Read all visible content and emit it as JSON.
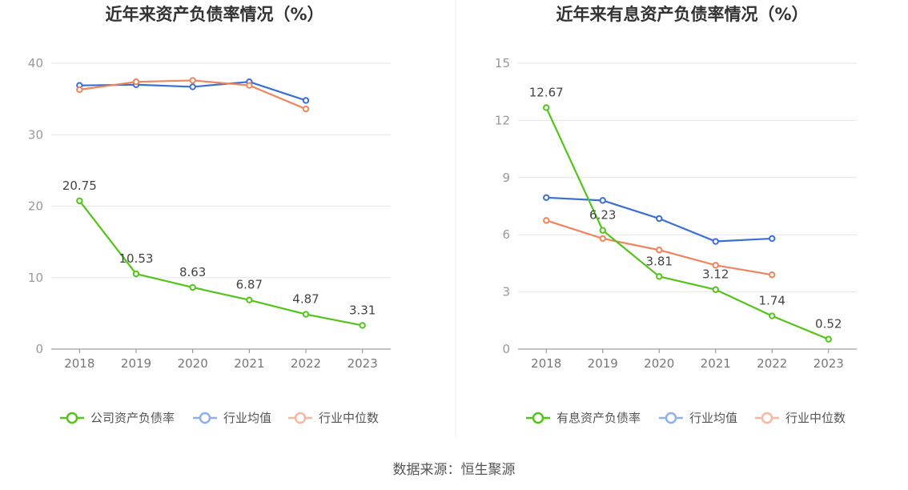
{
  "source": "数据来源：恒生聚源",
  "chart_data": [
    {
      "type": "line",
      "title": "近年来资产负债率情况（%）",
      "categories": [
        "2018",
        "2019",
        "2020",
        "2021",
        "2022",
        "2023"
      ],
      "ylim": [
        0,
        40
      ],
      "yticks": [
        0,
        10,
        20,
        30,
        40
      ],
      "grid": true,
      "legend_position": "bottom",
      "series": [
        {
          "name": "公司资产负债率",
          "color": "#52c41a",
          "values": [
            20.75,
            10.53,
            8.63,
            6.87,
            4.87,
            3.31
          ],
          "labels": [
            "20.75",
            "10.53",
            "8.63",
            "6.87",
            "4.87",
            "3.31"
          ]
        },
        {
          "name": "行业均值",
          "color": "#3a6fd8",
          "legend_color": "#8fb0ec",
          "values": [
            36.9,
            37.0,
            36.7,
            37.4,
            34.8,
            null
          ]
        },
        {
          "name": "行业中位数",
          "color": "#f0845c",
          "legend_color": "#f7b7a0",
          "values": [
            36.3,
            37.4,
            37.6,
            36.9,
            33.6,
            null
          ]
        }
      ]
    },
    {
      "type": "line",
      "title": "近年来有息资产负债率情况（%）",
      "categories": [
        "2018",
        "2019",
        "2020",
        "2021",
        "2022",
        "2023"
      ],
      "ylim": [
        0,
        15
      ],
      "yticks": [
        0,
        3,
        6,
        9,
        12,
        15
      ],
      "grid": true,
      "legend_position": "bottom",
      "series": [
        {
          "name": "有息资产负债率",
          "color": "#52c41a",
          "values": [
            12.67,
            6.23,
            3.81,
            3.12,
            1.74,
            0.52
          ],
          "labels": [
            "12.67",
            "6.23",
            "3.81",
            "3.12",
            "1.74",
            "0.52"
          ]
        },
        {
          "name": "行业均值",
          "color": "#3a6fd8",
          "legend_color": "#8fb0ec",
          "values": [
            7.95,
            7.8,
            6.85,
            5.65,
            5.8,
            null
          ]
        },
        {
          "name": "行业中位数",
          "color": "#f0845c",
          "legend_color": "#f7b7a0",
          "values": [
            6.75,
            5.8,
            5.2,
            4.4,
            3.9,
            null
          ]
        }
      ]
    }
  ]
}
